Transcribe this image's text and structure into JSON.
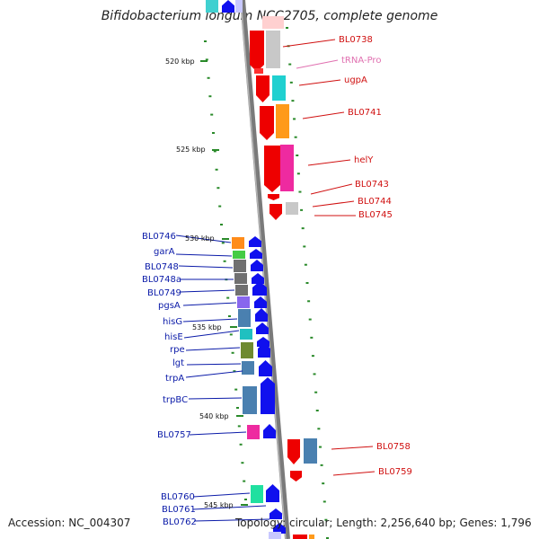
{
  "title": "Bifidobacterium longum NCC2705, complete genome",
  "footer": {
    "accession": "Accession: NC_004307",
    "summary": "Topology: circular; Length: 2,256,640 bp; Genes: 1,796"
  },
  "scale": {
    "ticks": [
      "520 kbp",
      "525 kbp",
      "530 kbp",
      "535 kbp",
      "540 kbp",
      "545 kbp"
    ]
  },
  "right_genes": [
    "BL0738",
    "tRNA-Pro",
    "ugpA",
    "BL0741",
    "helY",
    "BL0743",
    "BL0744",
    "BL0745",
    "BL0758",
    "BL0759"
  ],
  "left_genes": [
    "BL0746",
    "garA",
    "BL0748",
    "BL0748a",
    "BL0749",
    "pgsA",
    "hisG",
    "hisE",
    "rpe",
    "lgt",
    "trpA",
    "trpBC",
    "BL0757",
    "BL0760",
    "BL0761",
    "BL0762"
  ],
  "colors": {
    "right_label": "#d01010",
    "trna_label": "#e070b0",
    "left_label": "#0a1aa8",
    "backbone": "#808080",
    "tick_mark": "#2a8a2a"
  }
}
